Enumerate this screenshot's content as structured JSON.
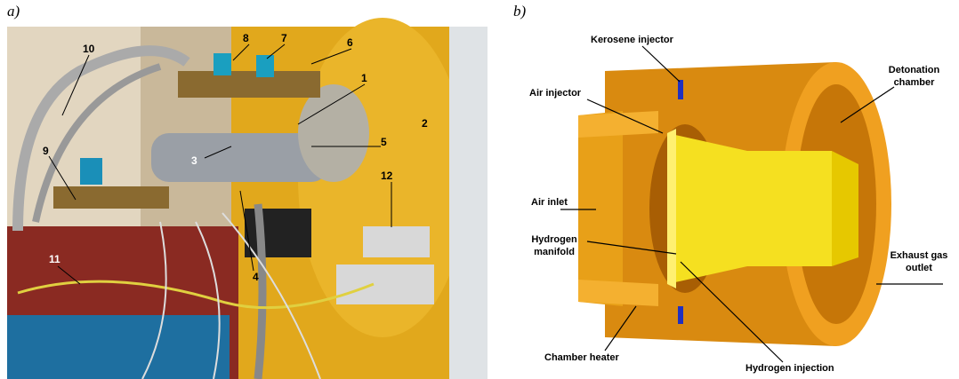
{
  "panel_a": {
    "label": "a)",
    "callouts": [
      "1",
      "2",
      "3",
      "4",
      "5",
      "6",
      "7",
      "8",
      "9",
      "10",
      "11",
      "12"
    ]
  },
  "panel_b": {
    "label": "b)",
    "labels": {
      "kerosene_injector": "Kerosene injector",
      "detonation_chamber": "Detonation chamber",
      "air_injector": "Air injector",
      "air_inlet": "Air inlet",
      "hydrogen_manifold": "Hydrogen manifold",
      "exhaust_gas_outlet": "Exhaust gas outlet",
      "chamber_heater": "Chamber heater",
      "hydrogen_injection": "Hydrogen injection"
    }
  }
}
